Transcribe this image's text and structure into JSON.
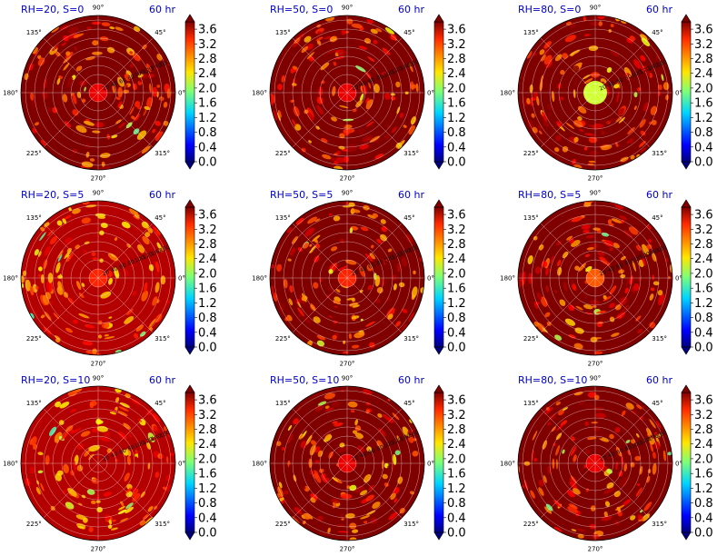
{
  "panels_meta": {
    "theta_labels": [
      "90°",
      "45°",
      "0°",
      "315°",
      "270°",
      "225°",
      "180°",
      "135°"
    ],
    "radial_tick_labels": [
      "20",
      "40",
      "60",
      "80",
      "100",
      "120",
      "140",
      "160"
    ],
    "colorbar_ticks": [
      "0.0",
      "0.4",
      "0.8",
      "1.2",
      "1.6",
      "2.0",
      "2.4",
      "2.8",
      "3.2",
      "3.6"
    ]
  },
  "chart_data": [
    {
      "type": "heatmap",
      "projection": "polar",
      "title_left": "RH=20, S=0",
      "title_right": "60 hr",
      "colorbar_range": [
        0.0,
        3.8
      ],
      "center_value": 3.4,
      "background_value": 3.8
    },
    {
      "type": "heatmap",
      "projection": "polar",
      "title_left": "RH=50, S=0",
      "title_right": "60 hr",
      "colorbar_range": [
        0.0,
        3.8
      ],
      "center_value": 3.4,
      "background_value": 3.8
    },
    {
      "type": "heatmap",
      "projection": "polar",
      "title_left": "RH=80, S=0",
      "title_right": "60 hr",
      "colorbar_range": [
        0.0,
        3.8
      ],
      "center_value": 2.2,
      "background_value": 3.8
    },
    {
      "type": "heatmap",
      "projection": "polar",
      "title_left": "RH=20, S=5",
      "title_right": "60 hr",
      "colorbar_range": [
        0.0,
        3.8
      ],
      "center_value": 3.2,
      "background_value": 3.6
    },
    {
      "type": "heatmap",
      "projection": "polar",
      "title_left": "RH=50, S=5",
      "title_right": "60 hr",
      "colorbar_range": [
        0.0,
        3.8
      ],
      "center_value": 3.2,
      "background_value": 3.8
    },
    {
      "type": "heatmap",
      "projection": "polar",
      "title_left": "RH=80, S=5",
      "title_right": "60 hr",
      "colorbar_range": [
        0.0,
        3.8
      ],
      "center_value": 3.0,
      "background_value": 3.8
    },
    {
      "type": "heatmap",
      "projection": "polar",
      "title_left": "RH=20, S=10",
      "title_right": "60 hr",
      "colorbar_range": [
        0.0,
        3.8
      ],
      "center_value": 3.6,
      "background_value": 3.6
    },
    {
      "type": "heatmap",
      "projection": "polar",
      "title_left": "RH=50, S=10",
      "title_right": "60 hr",
      "colorbar_range": [
        0.0,
        3.8
      ],
      "center_value": 3.4,
      "background_value": 3.8
    },
    {
      "type": "heatmap",
      "projection": "polar",
      "title_left": "RH=80, S=10",
      "title_right": "60 hr",
      "colorbar_range": [
        0.0,
        3.8
      ],
      "center_value": 3.4,
      "background_value": 3.8
    }
  ]
}
